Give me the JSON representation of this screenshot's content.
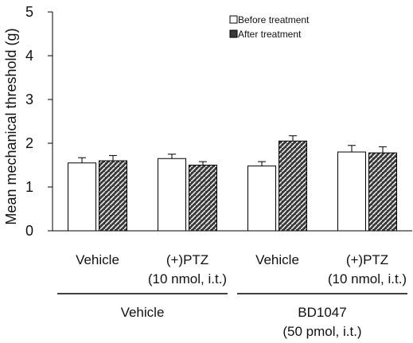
{
  "chart_data": {
    "type": "bar",
    "ylabel": "Mean mechanical threshold (g)",
    "ylim": [
      0,
      5
    ],
    "yticks": [
      0,
      1,
      2,
      3,
      4,
      5
    ],
    "grid": false,
    "legend_position": "top-right",
    "categories": [
      "Vehicle",
      "(+)PTZ (10 nmol, i.t.)",
      "Vehicle",
      "(+)PTZ (10 nmol, i.t.)"
    ],
    "category_labels": [
      [
        "Vehicle"
      ],
      [
        "(+)PTZ",
        "(10 nmol, i.t.)"
      ],
      [
        "Vehicle"
      ],
      [
        "(+)PTZ",
        "(10 nmol, i.t.)"
      ]
    ],
    "groups": [
      {
        "lines": [
          "Vehicle"
        ],
        "span": [
          0,
          1
        ]
      },
      {
        "lines": [
          "BD1047",
          "(50 pmol, i.t.)"
        ],
        "span": [
          2,
          3
        ]
      }
    ],
    "series": [
      {
        "name": "Before treatment",
        "values": [
          1.55,
          1.65,
          1.48,
          1.8
        ],
        "errors": [
          0.12,
          0.1,
          0.1,
          0.15
        ],
        "fill": "#ffffff"
      },
      {
        "name": "After treatment",
        "values": [
          1.6,
          1.5,
          2.05,
          1.78
        ],
        "errors": [
          0.12,
          0.08,
          0.12,
          0.14
        ],
        "fill": "#3a3a3a"
      }
    ]
  }
}
